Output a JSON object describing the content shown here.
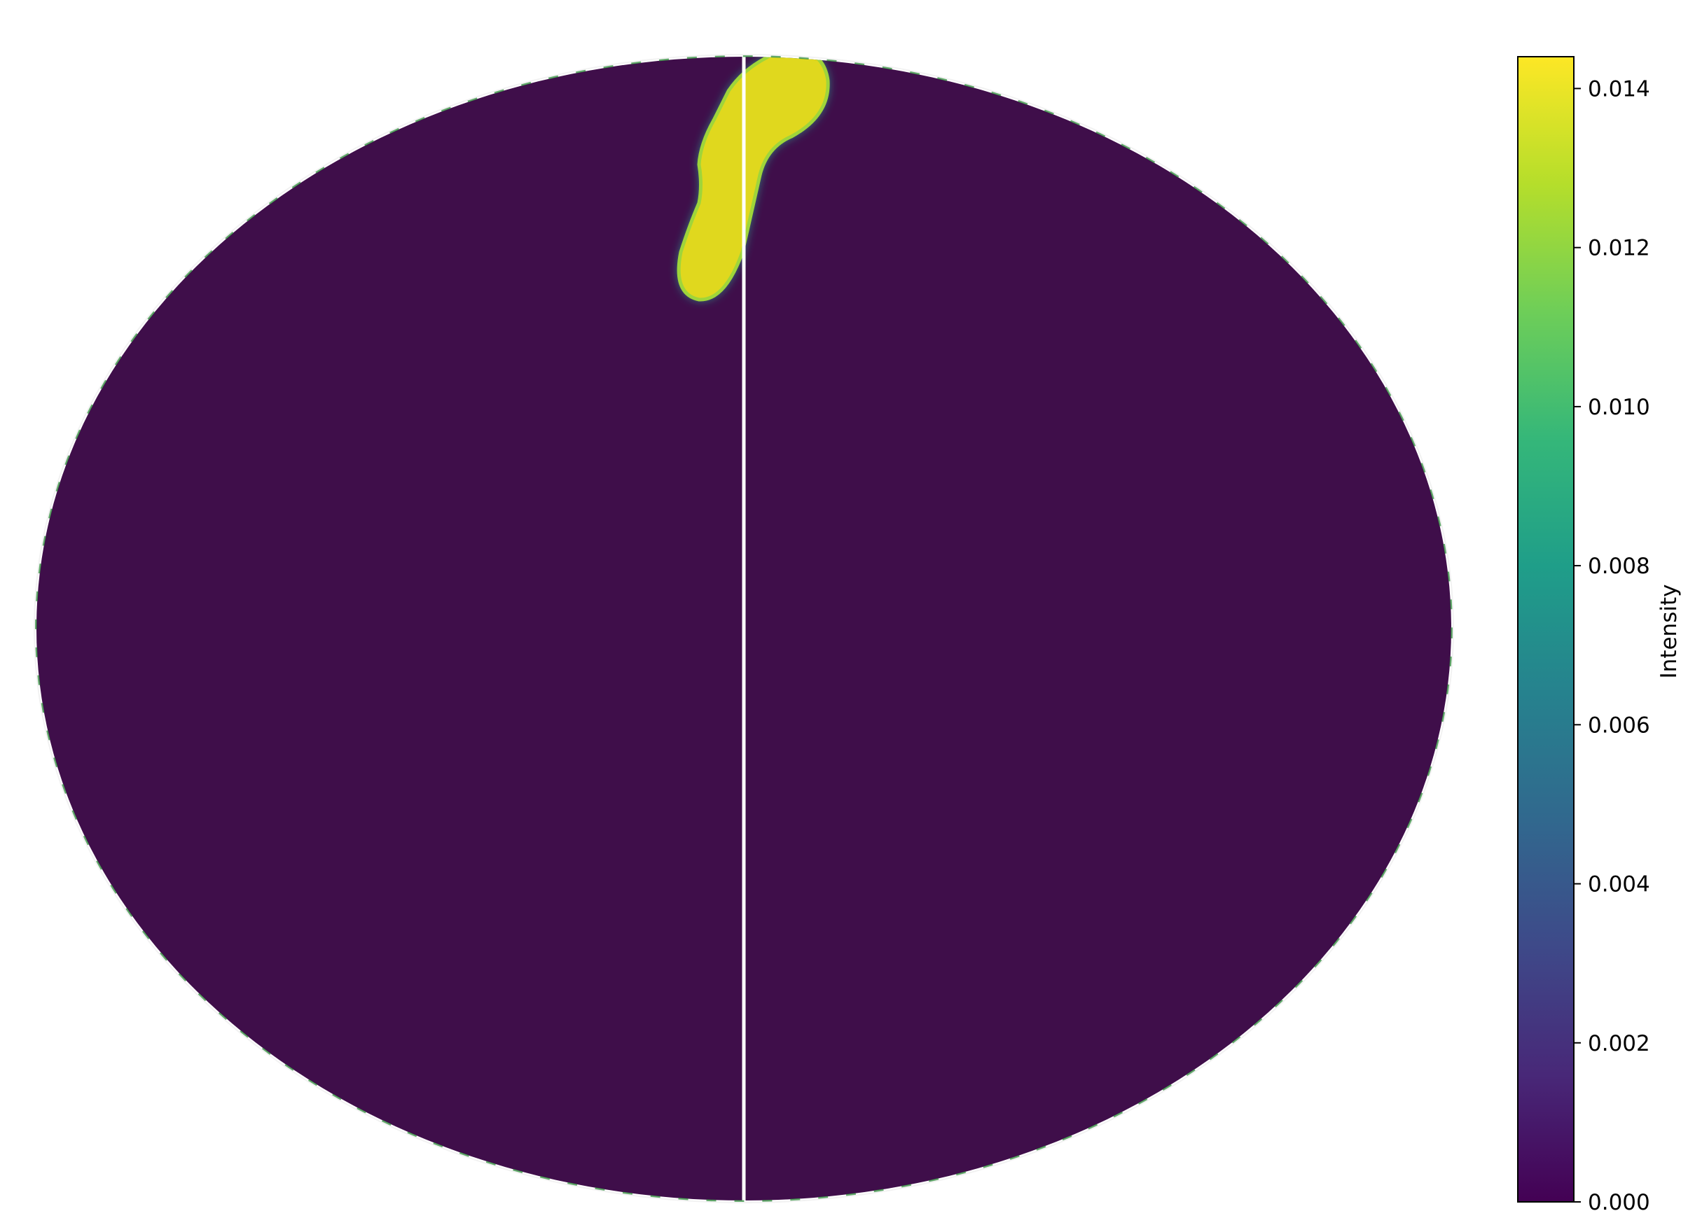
{
  "chart_data": {
    "type": "heatmap",
    "projection": "mollweide sky map",
    "title": "",
    "colormap": "viridis",
    "colormap_stops": [
      "#440154",
      "#482878",
      "#3e4989",
      "#31688e",
      "#26828e",
      "#1f9e89",
      "#35b779",
      "#6ece58",
      "#b5de2b",
      "#fde725"
    ],
    "background_color": "#3f0e4a",
    "hotspot_color": "#e0d81e",
    "meridian_color": "#ffffff",
    "background_value": 0.0,
    "hotspot_value": 0.0135,
    "colorbar": {
      "label": "Intensity",
      "range": [
        0.0,
        0.0144
      ],
      "ticks": [
        0.0,
        0.002,
        0.004,
        0.006,
        0.008,
        0.01,
        0.012,
        0.014
      ],
      "tick_labels": [
        "0.000",
        "0.002",
        "0.004",
        "0.006",
        "0.008",
        "0.010",
        "0.012",
        "0.014"
      ]
    }
  }
}
